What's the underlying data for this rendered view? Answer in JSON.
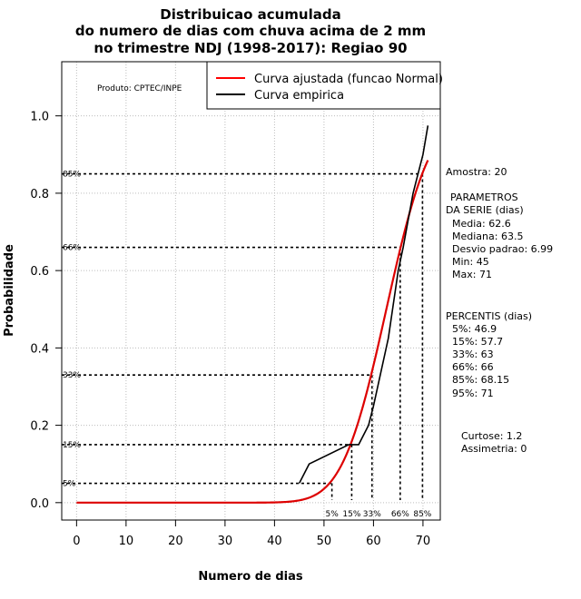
{
  "chart_data": {
    "type": "line",
    "title": [
      "Distribuicao acumulada",
      "do numero de dias com chuva acima de 2 mm",
      "no trimestre NDJ (1998-2017): Regiao 90"
    ],
    "xlabel": "Numero de dias",
    "ylabel": "Probabilidade",
    "xlim": [
      -3,
      73.5
    ],
    "ylim": [
      -0.045,
      1.14
    ],
    "xticks": [
      0,
      10,
      20,
      30,
      40,
      50,
      60,
      70
    ],
    "yticks": [
      0.0,
      0.2,
      0.4,
      0.6,
      0.8,
      1.0
    ],
    "ytick_labels": [
      "0.0",
      "0.2",
      "0.4",
      "0.6",
      "0.8",
      "1.0"
    ],
    "product_label": "Produto: CPTEC/INPE",
    "legend": [
      {
        "label": "Curva ajustada (funcao Normal)",
        "color": "#ff0000"
      },
      {
        "label": "Curva empirica",
        "color": "#000000"
      }
    ],
    "fitted": {
      "mean": 62.6,
      "sd": 6.99,
      "x_start": 0,
      "x_end": 71,
      "color": "#dd0000"
    },
    "empirical": {
      "x": [
        45,
        47,
        55,
        57,
        59,
        60,
        63,
        65,
        66,
        68,
        70,
        71
      ],
      "y": [
        0.05,
        0.1,
        0.15,
        0.15,
        0.2,
        0.25,
        0.425,
        0.6,
        0.66,
        0.8,
        0.9,
        0.975
      ]
    },
    "percentiles": [
      {
        "label": "5%",
        "p": 0.05,
        "x": 51.6
      },
      {
        "label": "15%",
        "p": 0.15,
        "x": 55.6
      },
      {
        "label": "33%",
        "p": 0.33,
        "x": 59.7
      },
      {
        "label": "66%",
        "p": 0.66,
        "x": 65.4
      },
      {
        "label": "85%",
        "p": 0.85,
        "x": 69.9
      }
    ],
    "stats": {
      "amostra": "Amostra: 20",
      "param_title1": "PARAMETROS",
      "param_title2": "DA SERIE (dias)",
      "media": "Media: 62.6",
      "mediana": "Mediana: 63.5",
      "desvio": "Desvio padrao: 6.99",
      "min": "Min: 45",
      "max": "Max: 71",
      "perc_title": "PERCENTIS (dias)",
      "p5": "5%: 46.9",
      "p15": "15%: 57.7",
      "p33": "33%: 63",
      "p66": "66%: 66",
      "p85": "85%: 68.15",
      "p95": "95%: 71",
      "curtose": "Curtose: 1.2",
      "assimetria": "Assimetria: 0"
    }
  }
}
